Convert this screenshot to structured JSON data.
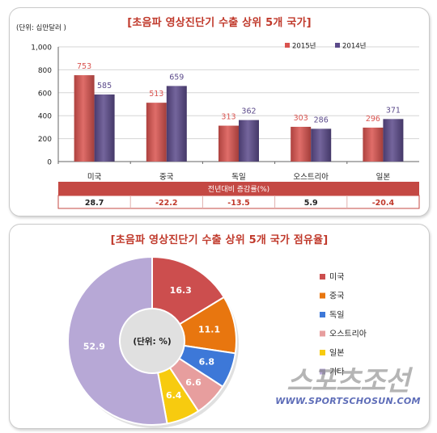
{
  "chart_data": [
    {
      "type": "bar",
      "title": "[초음파 영상진단기 수출 상위 5개 국가]",
      "unit_label": "(단위: 십만달러 )",
      "categories": [
        "미국",
        "중국",
        "독일",
        "오스트리아",
        "일본"
      ],
      "series": [
        {
          "name": "2015년",
          "values": [
            753,
            513,
            313,
            303,
            296
          ],
          "color": "#d9534f"
        },
        {
          "name": "2014년",
          "values": [
            585,
            659,
            362,
            286,
            371
          ],
          "color": "#5b4a8a"
        }
      ],
      "ylim": [
        0,
        1000
      ],
      "yticks": [
        "0",
        "200",
        "400",
        "600",
        "800",
        "1,000"
      ],
      "legend_position": "top-right",
      "growth_table": {
        "header": "전년대비 증감률(%)",
        "values": [
          "28.7",
          "-22.2",
          "-13.5",
          "5.9",
          "-20.4"
        ]
      }
    },
    {
      "type": "pie",
      "title": "[초음파 영상진단기 수출 상위 5개 국가 점유율]",
      "center_label": "(단위: %)",
      "labels": [
        "미국",
        "중국",
        "독일",
        "오스트리아",
        "일본",
        "기타"
      ],
      "values": [
        16.3,
        11.1,
        6.8,
        6.6,
        6.4,
        52.9
      ],
      "display_values": [
        "16.3",
        "11.1",
        "6.8",
        "6.6",
        "6.4",
        "52.9"
      ],
      "colors": [
        "#cc4e4e",
        "#e8760f",
        "#3d78d8",
        "#e79e9e",
        "#f7cb0f",
        "#b7a8d6"
      ],
      "legend_position": "right"
    }
  ],
  "watermark": {
    "logo": "스포츠조선",
    "url": "WWW.SPORTSCHOSUN.COM"
  }
}
